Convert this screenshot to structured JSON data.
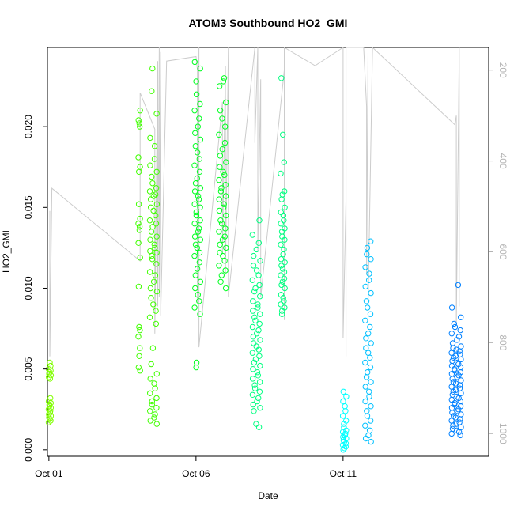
{
  "chart_data": {
    "type": "scatter",
    "title": "ATOM3 Southbound HO2_GMI",
    "xlabel": "Date",
    "ylabel": "HO2_GMI",
    "x_unit": "day of October 2017",
    "xlim": [
      0.95,
      15.95
    ],
    "ylim": [
      -0.0004,
      0.0249
    ],
    "x_ticks": [
      {
        "value": 1,
        "label": "Oct 01"
      },
      {
        "value": 6,
        "label": "Oct 06"
      },
      {
        "value": 11,
        "label": "Oct 11"
      }
    ],
    "y_ticks": [
      {
        "value": 0.0,
        "label": "0.000"
      },
      {
        "value": 0.005,
        "label": "0.005"
      },
      {
        "value": 0.01,
        "label": "0.010"
      },
      {
        "value": 0.015,
        "label": "0.015"
      },
      {
        "value": 0.02,
        "label": "0.020"
      }
    ],
    "secondary_axis": {
      "lim": [
        1050,
        150
      ],
      "ticks": [
        {
          "value": 200,
          "label": "200"
        },
        {
          "value": 400,
          "label": "400"
        },
        {
          "value": 600,
          "label": "600"
        },
        {
          "value": 800,
          "label": "800"
        },
        {
          "value": 1000,
          "label": "1000"
        }
      ],
      "line_color": "#cccccc"
    },
    "grid": false,
    "legend": "none",
    "colors": {
      "day1": "#80ff00",
      "day2": "#40ff00",
      "day3": "#00ff20",
      "day4": "#00ff80",
      "day5": "#00ffc0",
      "day6": "#00ffff",
      "day7": "#00c0ff",
      "day8": "#0080ff"
    },
    "series": [
      {
        "color": "#80ff00",
        "x_center": 1.03,
        "x_spread": 0.04,
        "y_values": [
          0.0054,
          0.0052,
          0.005,
          0.0049,
          0.0048,
          0.0047,
          0.0046,
          0.0045,
          0.0044,
          0.0032,
          0.003,
          0.0029,
          0.0028,
          0.0027,
          0.0026,
          0.0025,
          0.0024,
          0.0023,
          0.0022,
          0.0021,
          0.002,
          0.0019,
          0.0018,
          0.0017
        ]
      },
      {
        "color": "#40ff00",
        "x_center": 4.07,
        "x_spread": 0.03,
        "y_values": [
          0.021,
          0.0204,
          0.0202,
          0.02,
          0.0181,
          0.0175,
          0.0172,
          0.0152,
          0.0143,
          0.014,
          0.0138,
          0.0136,
          0.0128,
          0.0119,
          0.0101,
          0.0076,
          0.0074,
          0.007,
          0.0063,
          0.0058,
          0.0051,
          0.0049
        ]
      },
      {
        "color": "#40ff00",
        "x_center": 4.55,
        "x_spread": 0.12,
        "y_values": [
          0.0236,
          0.0222,
          0.0208,
          0.0193,
          0.0188,
          0.018,
          0.0176,
          0.0172,
          0.0169,
          0.0165,
          0.0162,
          0.016,
          0.0158,
          0.0157,
          0.0155,
          0.0152,
          0.015,
          0.0148,
          0.0145,
          0.0142,
          0.014,
          0.0138,
          0.0135,
          0.0132,
          0.013,
          0.0127,
          0.0125,
          0.0123,
          0.0122,
          0.012,
          0.0118,
          0.0115,
          0.011,
          0.0108,
          0.0104,
          0.01,
          0.0098,
          0.0094,
          0.009,
          0.0086,
          0.0082,
          0.0078,
          0.0063,
          0.0053,
          0.0047,
          0.0044,
          0.0041,
          0.0038,
          0.0035,
          0.0032,
          0.003,
          0.0028,
          0.0026,
          0.0024,
          0.0022,
          0.002,
          0.0018,
          0.0016
        ]
      },
      {
        "color": "#00ff20",
        "x_center": 6.05,
        "x_spread": 0.1,
        "y_values": [
          0.024,
          0.0236,
          0.0228,
          0.022,
          0.0214,
          0.021,
          0.0205,
          0.02,
          0.0196,
          0.0192,
          0.0188,
          0.0184,
          0.018,
          0.0176,
          0.0172,
          0.0168,
          0.0165,
          0.0162,
          0.016,
          0.0157,
          0.0155,
          0.0152,
          0.015,
          0.0147,
          0.0145,
          0.0142,
          0.014,
          0.0137,
          0.0135,
          0.0132,
          0.013,
          0.0127,
          0.0125,
          0.0122,
          0.012,
          0.0116,
          0.0112,
          0.0108,
          0.0104,
          0.01,
          0.0096,
          0.0092,
          0.0088,
          0.0084,
          0.0054,
          0.0051
        ]
      },
      {
        "color": "#00ff20",
        "x_center": 6.9,
        "x_spread": 0.12,
        "y_values": [
          0.023,
          0.0228,
          0.0225,
          0.0215,
          0.021,
          0.0205,
          0.02,
          0.0195,
          0.019,
          0.0186,
          0.0182,
          0.0178,
          0.0175,
          0.0172,
          0.017,
          0.0167,
          0.0164,
          0.0162,
          0.016,
          0.0157,
          0.0155,
          0.0152,
          0.015,
          0.0148,
          0.0145,
          0.0142,
          0.014,
          0.0137,
          0.0135,
          0.0132,
          0.013,
          0.0127,
          0.0125,
          0.0122,
          0.012,
          0.0117,
          0.0114,
          0.0111,
          0.0108,
          0.0104,
          0.01
        ]
      },
      {
        "color": "#00ff80",
        "x_center": 8.05,
        "x_spread": 0.13,
        "y_values": [
          0.0142,
          0.0133,
          0.0128,
          0.0124,
          0.012,
          0.0117,
          0.0114,
          0.0111,
          0.0108,
          0.0105,
          0.0102,
          0.01,
          0.0098,
          0.0095,
          0.0092,
          0.009,
          0.0088,
          0.0086,
          0.0084,
          0.0082,
          0.008,
          0.0078,
          0.0076,
          0.0074,
          0.0072,
          0.007,
          0.0068,
          0.0066,
          0.0064,
          0.0062,
          0.006,
          0.0058,
          0.0056,
          0.0054,
          0.0052,
          0.005,
          0.0048,
          0.0046,
          0.0044,
          0.0042,
          0.004,
          0.0038,
          0.0036,
          0.0034,
          0.0032,
          0.003,
          0.0028,
          0.0026,
          0.0024,
          0.0016,
          0.0014
        ]
      },
      {
        "color": "#00ff80",
        "x_center": 8.95,
        "x_spread": 0.07,
        "y_values": [
          0.023,
          0.0195,
          0.0178,
          0.0171,
          0.016,
          0.0158,
          0.0155,
          0.015,
          0.0147,
          0.0145,
          0.0142,
          0.014,
          0.0137,
          0.0135,
          0.0132,
          0.013,
          0.0127,
          0.0124,
          0.0121,
          0.0118,
          0.0116,
          0.0114,
          0.0112,
          0.011,
          0.0108,
          0.0106,
          0.0104,
          0.0102,
          0.01,
          0.0096,
          0.0094,
          0.0092,
          0.009,
          0.0088,
          0.0086,
          0.0084
        ]
      },
      {
        "color": "#00ffff",
        "x_center": 11.05,
        "x_spread": 0.06,
        "y_values": [
          0.0036,
          0.0033,
          0.003,
          0.0027,
          0.0024,
          0.0021,
          0.0018,
          0.0016,
          0.0014,
          0.0012,
          0.0011,
          0.001,
          0.0009,
          0.0008,
          0.0007,
          0.0006,
          0.0005,
          0.0004,
          0.0003,
          0.0002,
          0.0001,
          0.0
        ]
      },
      {
        "color": "#00c0ff",
        "x_center": 11.85,
        "x_spread": 0.1,
        "y_values": [
          0.0129,
          0.0125,
          0.0121,
          0.0118,
          0.0113,
          0.0109,
          0.0105,
          0.0101,
          0.0097,
          0.0092,
          0.0088,
          0.0084,
          0.008,
          0.0076,
          0.0072,
          0.0069,
          0.0066,
          0.0063,
          0.006,
          0.0057,
          0.0054,
          0.0051,
          0.0048,
          0.0045,
          0.0042,
          0.0039,
          0.0036,
          0.0033,
          0.003,
          0.0027,
          0.0024,
          0.0021,
          0.0018,
          0.0015,
          0.0012,
          0.0009,
          0.0007,
          0.0005
        ]
      },
      {
        "color": "#0080ff",
        "x_center": 14.85,
        "x_spread": 0.16,
        "y_values": [
          0.0102,
          0.0088,
          0.0082,
          0.0078,
          0.0076,
          0.0074,
          0.0072,
          0.007,
          0.0068,
          0.0066,
          0.0064,
          0.0063,
          0.0062,
          0.0061,
          0.006,
          0.0059,
          0.0058,
          0.0057,
          0.0056,
          0.0055,
          0.0054,
          0.0053,
          0.0052,
          0.0051,
          0.005,
          0.0049,
          0.0048,
          0.0047,
          0.0046,
          0.0045,
          0.0044,
          0.0043,
          0.0042,
          0.0041,
          0.004,
          0.0039,
          0.0038,
          0.0037,
          0.0036,
          0.0035,
          0.0034,
          0.0033,
          0.0032,
          0.0031,
          0.003,
          0.0029,
          0.0028,
          0.0027,
          0.0026,
          0.0025,
          0.0024,
          0.0023,
          0.0022,
          0.0021,
          0.002,
          0.0019,
          0.0018,
          0.0017,
          0.0016,
          0.0015,
          0.0014,
          0.0013,
          0.0012,
          0.0011,
          0.001,
          0.0009
        ]
      }
    ],
    "pressure_track": [
      [
        1.03,
        510
      ],
      [
        1.03,
        830
      ],
      [
        1.1,
        460
      ],
      [
        4.1,
        620
      ],
      [
        4.1,
        250
      ],
      [
        4.6,
        330
      ],
      [
        4.6,
        780
      ],
      [
        4.7,
        180
      ],
      [
        4.7,
        720
      ],
      [
        4.75,
        120
      ],
      [
        4.75,
        700
      ],
      [
        4.8,
        160
      ],
      [
        4.8,
        740
      ],
      [
        5.0,
        180
      ],
      [
        6.0,
        170
      ],
      [
        6.05,
        200
      ],
      [
        6.05,
        710
      ],
      [
        6.1,
        150
      ],
      [
        6.1,
        810
      ],
      [
        6.9,
        270
      ],
      [
        6.9,
        600
      ],
      [
        7.0,
        190
      ],
      [
        7.0,
        650
      ],
      [
        7.1,
        140
      ],
      [
        7.1,
        700
      ],
      [
        8.0,
        150
      ],
      [
        8.0,
        360
      ],
      [
        8.1,
        140
      ],
      [
        8.1,
        600
      ],
      [
        8.2,
        220
      ],
      [
        8.2,
        700
      ],
      [
        9.0,
        200
      ],
      [
        9.0,
        750
      ],
      [
        9.0,
        150
      ],
      [
        10.05,
        190
      ],
      [
        11.0,
        150
      ],
      [
        11.0,
        790
      ],
      [
        11.1,
        480
      ],
      [
        11.1,
        830
      ],
      [
        11.1,
        140
      ],
      [
        11.7,
        150
      ],
      [
        11.8,
        280
      ],
      [
        11.8,
        650
      ],
      [
        11.85,
        160
      ],
      [
        11.85,
        720
      ],
      [
        12.0,
        140
      ],
      [
        14.8,
        320
      ],
      [
        14.85,
        300
      ],
      [
        14.85,
        760
      ],
      [
        14.95,
        140
      ],
      [
        14.95,
        720
      ]
    ]
  }
}
